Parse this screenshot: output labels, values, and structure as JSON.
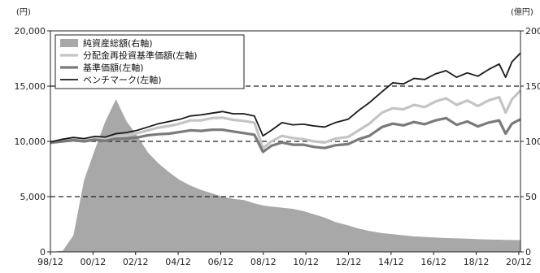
{
  "chart_data": {
    "type": "line",
    "left_unit": "(円)",
    "right_unit": "(億円)",
    "x_tick_labels": [
      "98/12",
      "00/12",
      "02/12",
      "04/12",
      "06/12",
      "08/12",
      "10/12",
      "12/12",
      "14/12",
      "16/12",
      "18/12",
      "20/12"
    ],
    "left_ticks": [
      "0",
      "5,000",
      "10,000",
      "15,000",
      "20,000"
    ],
    "right_ticks": [
      "0",
      "50",
      "100",
      "150",
      "200"
    ],
    "left_ylim": [
      0,
      20000
    ],
    "right_ylim": [
      0,
      200
    ],
    "x_range": [
      1998.92,
      2021.0
    ],
    "dashed_gridlines_left": [
      5000,
      10000,
      15000
    ],
    "legend_position": "top-left",
    "x": [
      1998.92,
      1999.5,
      2000.0,
      2000.5,
      2001.0,
      2001.5,
      2002.0,
      2002.5,
      2003.0,
      2003.5,
      2004.0,
      2004.5,
      2005.0,
      2005.5,
      2006.0,
      2006.5,
      2007.0,
      2007.5,
      2008.0,
      2008.5,
      2008.9,
      2009.3,
      2009.8,
      2010.3,
      2010.8,
      2011.3,
      2011.8,
      2012.3,
      2012.9,
      2013.4,
      2013.9,
      2014.5,
      2015.0,
      2015.5,
      2016.0,
      2016.5,
      2017.0,
      2017.5,
      2018.0,
      2018.5,
      2019.0,
      2019.5,
      2020.0,
      2020.3,
      2020.6,
      2021.0
    ],
    "series": [
      {
        "name": "純資産総額(右軸)",
        "axis": "right",
        "style": "area",
        "color": "#a8a8a8",
        "values": [
          0,
          1,
          15,
          65,
          92,
          118,
          138,
          118,
          105,
          90,
          80,
          72,
          65,
          60,
          56,
          53,
          50,
          48,
          47,
          44,
          42,
          41,
          40,
          39,
          37,
          34,
          31,
          27,
          24,
          21,
          19,
          17,
          16,
          15,
          14,
          13.5,
          13,
          12.5,
          12.2,
          12,
          11.5,
          11.2,
          11,
          10.8,
          10.7,
          10.6
        ]
      },
      {
        "name": "分配金再投資基準価額(左軸)",
        "axis": "left",
        "style": "line",
        "color": "#c4c4c4",
        "width": 3.2,
        "values": [
          9850,
          10000,
          10150,
          10050,
          10250,
          10200,
          10450,
          10550,
          10750,
          11000,
          11250,
          11400,
          11600,
          11900,
          11900,
          12100,
          12150,
          11950,
          11850,
          11700,
          9400,
          10000,
          10500,
          10300,
          10200,
          10000,
          9900,
          10250,
          10400,
          11000,
          11600,
          12600,
          13000,
          12900,
          13300,
          13100,
          13600,
          13900,
          13300,
          13700,
          13200,
          13700,
          14000,
          12600,
          13800,
          14600
        ]
      },
      {
        "name": "基準価額(左軸)",
        "axis": "left",
        "style": "line",
        "color": "#7a7a7a",
        "width": 3.2,
        "values": [
          9900,
          10000,
          10100,
          10000,
          10150,
          10050,
          10250,
          10250,
          10350,
          10550,
          10650,
          10700,
          10850,
          11000,
          10950,
          11050,
          11050,
          10900,
          10750,
          10600,
          9050,
          9600,
          9900,
          9700,
          9700,
          9500,
          9400,
          9650,
          9750,
          10200,
          10500,
          11300,
          11600,
          11450,
          11750,
          11550,
          11900,
          12100,
          11500,
          11800,
          11350,
          11700,
          11900,
          10700,
          11600,
          12000
        ]
      },
      {
        "name": "ベンチマーク(左軸)",
        "axis": "left",
        "style": "line",
        "color": "#1a1a1a",
        "width": 1.8,
        "values": [
          9950,
          10200,
          10350,
          10250,
          10450,
          10400,
          10700,
          10800,
          11000,
          11300,
          11600,
          11800,
          12000,
          12300,
          12400,
          12550,
          12700,
          12500,
          12500,
          12300,
          10500,
          11000,
          11700,
          11500,
          11550,
          11400,
          11300,
          11700,
          12000,
          12800,
          13500,
          14500,
          15300,
          15200,
          15700,
          15600,
          16100,
          16400,
          15800,
          16200,
          15900,
          16500,
          17000,
          15800,
          17200,
          18000
        ]
      }
    ]
  }
}
